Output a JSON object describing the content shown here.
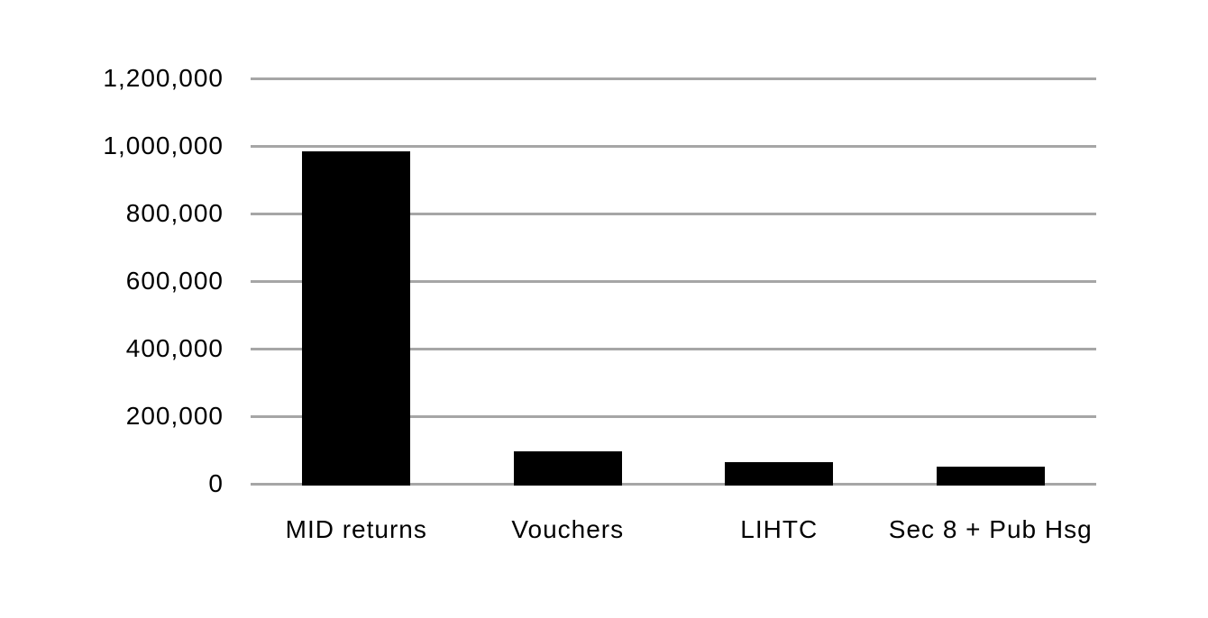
{
  "chart_data": {
    "type": "bar",
    "title": "",
    "xlabel": "",
    "ylabel": "",
    "categories": [
      "MID returns",
      "Vouchers",
      "LIHTC",
      "Sec 8 + Pub Hsg"
    ],
    "values": [
      985000,
      95000,
      65000,
      50000
    ],
    "ylim": [
      0,
      1200000
    ],
    "ytick_interval": 200000,
    "yticks": [
      {
        "value": 1200000,
        "label": "1,200,000"
      },
      {
        "value": 1000000,
        "label": "1,000,000"
      },
      {
        "value": 800000,
        "label": "800,000"
      },
      {
        "value": 600000,
        "label": "600,000"
      },
      {
        "value": 400000,
        "label": "400,000"
      },
      {
        "value": 200000,
        "label": "200,000"
      },
      {
        "value": 0,
        "label": "0"
      }
    ],
    "grid": true,
    "legend_position": "none",
    "colors": {
      "bar": "#000000",
      "gridline": "#a6a6a6",
      "text": "#000000",
      "background": "#ffffff"
    }
  }
}
